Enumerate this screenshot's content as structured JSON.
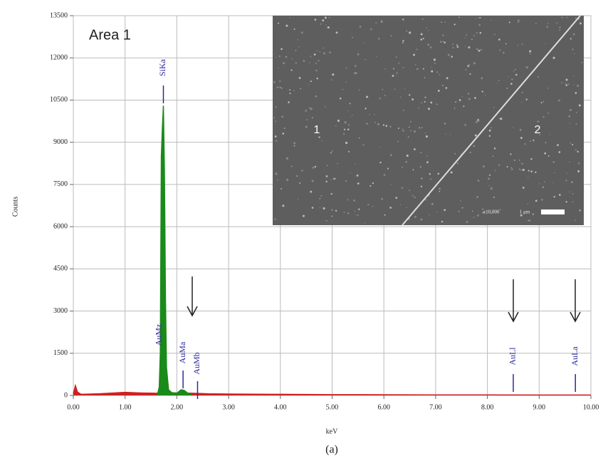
{
  "chart_data": {
    "type": "area",
    "annotation": "Area 1",
    "xlabel": "keV",
    "ylabel": "Counts",
    "caption": "(a)",
    "xlim": [
      0,
      10
    ],
    "ylim": [
      0,
      13500
    ],
    "xticks": [
      {
        "value": 0,
        "label": "0.00"
      },
      {
        "value": 1,
        "label": "1.00"
      },
      {
        "value": 2,
        "label": "2.00"
      },
      {
        "value": 3,
        "label": "3.00"
      },
      {
        "value": 4,
        "label": "4.00"
      },
      {
        "value": 5,
        "label": "5.00"
      },
      {
        "value": 6,
        "label": "6.00"
      },
      {
        "value": 7,
        "label": "7.00"
      },
      {
        "value": 8,
        "label": "8.00"
      },
      {
        "value": 9,
        "label": "9.00"
      },
      {
        "value": 10,
        "label": "10.00"
      }
    ],
    "yticks": [
      0,
      1500,
      3000,
      4500,
      6000,
      7500,
      9000,
      10500,
      12000,
      13500
    ],
    "grid": true,
    "series": [
      {
        "color": "#cc2222",
        "x": [
          0,
          0.04,
          0.08,
          0.15,
          0.5,
          1.0,
          1.3,
          1.6,
          1.9,
          2.3,
          2.6,
          3.0,
          4.0,
          5.0,
          6.0,
          7.0,
          8.0,
          9.0,
          10.0
        ],
        "values": [
          60,
          350,
          120,
          40,
          60,
          110,
          90,
          80,
          90,
          80,
          60,
          50,
          40,
          30,
          25,
          20,
          20,
          15,
          15
        ]
      },
      {
        "color": "#1a8a1a",
        "x": [
          1.62,
          1.66,
          1.68,
          1.7,
          1.72,
          1.74,
          1.76,
          1.78,
          1.8,
          1.84,
          1.9,
          2.0,
          2.08,
          2.14,
          2.2,
          2.3
        ],
        "values": [
          0,
          300,
          1500,
          8500,
          9500,
          10300,
          8000,
          3500,
          1000,
          200,
          100,
          80,
          200,
          180,
          100,
          0
        ]
      }
    ],
    "peak_labels": [
      {
        "text": "SiKa",
        "energy": 1.74
      },
      {
        "text": "AuMz",
        "energy": 1.66
      },
      {
        "text": "AuMa",
        "energy": 2.12
      },
      {
        "text": "AuMb",
        "energy": 2.4
      },
      {
        "text": "AuLl",
        "energy": 8.5
      },
      {
        "text": "AuLa",
        "energy": 9.7
      }
    ],
    "inset": {
      "region_labels": [
        "1",
        "2"
      ],
      "magnification": "x10,000",
      "scale_bar": "1 μm"
    }
  }
}
